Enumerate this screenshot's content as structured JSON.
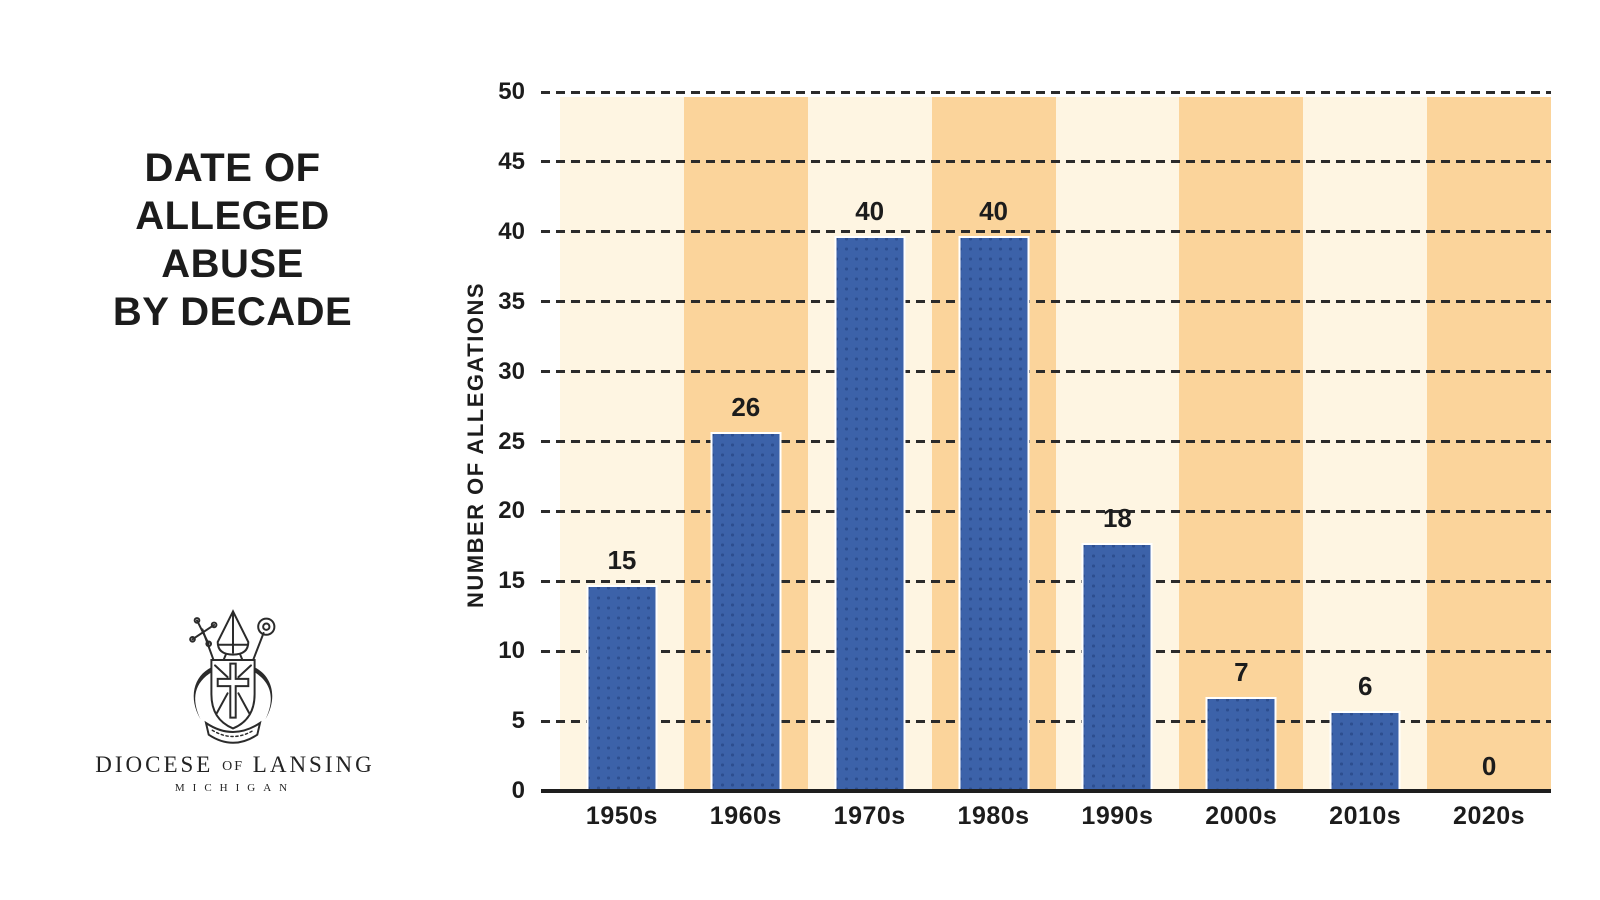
{
  "left_panel": {
    "title_lines": [
      "DATE OF",
      "ALLEGED",
      "ABUSE",
      "BY DECADE"
    ],
    "logo": {
      "word_diocese": "DIOCESE",
      "word_of": "OF",
      "word_lansing": "LANSING",
      "word_michigan": "MICHIGAN"
    }
  },
  "chart_data": {
    "type": "bar",
    "title": "DATE OF ALLEGED ABUSE BY DECADE",
    "categories": [
      "1950s",
      "1960s",
      "1970s",
      "1980s",
      "1990s",
      "2000s",
      "2010s",
      "2020s"
    ],
    "values": [
      15,
      26,
      40,
      40,
      18,
      7,
      6,
      0
    ],
    "xlabel": "",
    "ylabel": "NUMBER OF ALLEGATIONS",
    "ylim": [
      0,
      50
    ],
    "y_ticks": [
      0,
      5,
      10,
      15,
      20,
      25,
      30,
      35,
      40,
      45,
      50
    ],
    "grid": "horizontal dashed lines at every tick",
    "legend": "none",
    "background_stripes": "vertical bands alternating light/dark per category, starting light",
    "bar_texture": "dark dot grid on blue bars with white bar outline",
    "value_labels_shown": true
  },
  "colors": {
    "bar": "#3C62A9",
    "bar_dot": "#2D4E8F",
    "bar_border": "#FFFFFF",
    "stripe_light": "#FEF5E2",
    "stripe_dark": "#FBD49B",
    "gridline": "#2B2B2B",
    "axis_line": "#1E1E1E",
    "text": "#1C1C1C"
  }
}
